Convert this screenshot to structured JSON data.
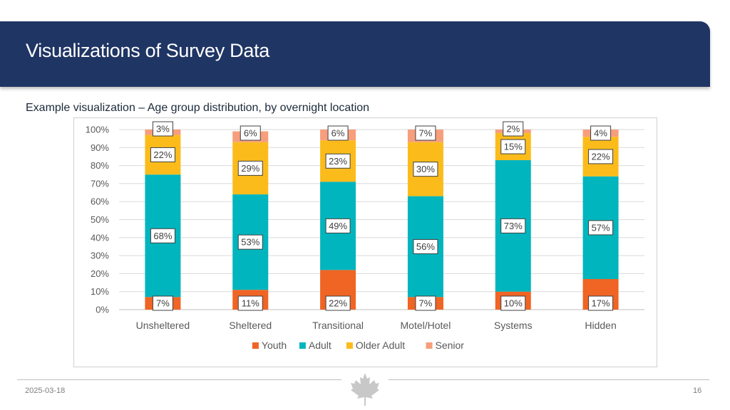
{
  "slide": {
    "title": "Visualizations of Survey Data",
    "subtitle": "Example visualization – Age group distribution, by overnight location",
    "date": "2025-03-18",
    "page_number": "16"
  },
  "colors": {
    "header_bg": "#1f3564",
    "youth": "#f06424",
    "adult": "#00b5bd",
    "older_adult": "#fbbc1b",
    "senior": "#f79e7c"
  },
  "chart_data": {
    "type": "bar",
    "stacked": true,
    "title": "",
    "xlabel": "",
    "ylabel": "",
    "ylim": [
      0,
      100
    ],
    "y_ticks": [
      "0%",
      "10%",
      "20%",
      "30%",
      "40%",
      "50%",
      "60%",
      "70%",
      "80%",
      "90%",
      "100%"
    ],
    "grid": true,
    "legend_position": "bottom",
    "categories": [
      "Unsheltered",
      "Sheltered",
      "Transitional",
      "Motel/Hotel",
      "Systems",
      "Hidden"
    ],
    "series": [
      {
        "name": "Youth",
        "color": "#f06424",
        "values": [
          7,
          11,
          22,
          7,
          10,
          17
        ],
        "labels": [
          "7%",
          "11%",
          "22%",
          "7%",
          "10%",
          "17%"
        ]
      },
      {
        "name": "Adult",
        "color": "#00b5bd",
        "values": [
          68,
          53,
          49,
          56,
          73,
          57
        ],
        "labels": [
          "68%",
          "53%",
          "49%",
          "56%",
          "73%",
          "57%"
        ]
      },
      {
        "name": "Older Adult",
        "color": "#fbbc1b",
        "values": [
          22,
          29,
          23,
          30,
          15,
          22
        ],
        "labels": [
          "22%",
          "29%",
          "23%",
          "30%",
          "15%",
          "22%"
        ]
      },
      {
        "name": "Senior",
        "color": "#f79e7c",
        "values": [
          3,
          6,
          6,
          7,
          2,
          4
        ],
        "labels": [
          "3%",
          "6%",
          "6%",
          "7%",
          "2%",
          "4%"
        ]
      }
    ]
  }
}
